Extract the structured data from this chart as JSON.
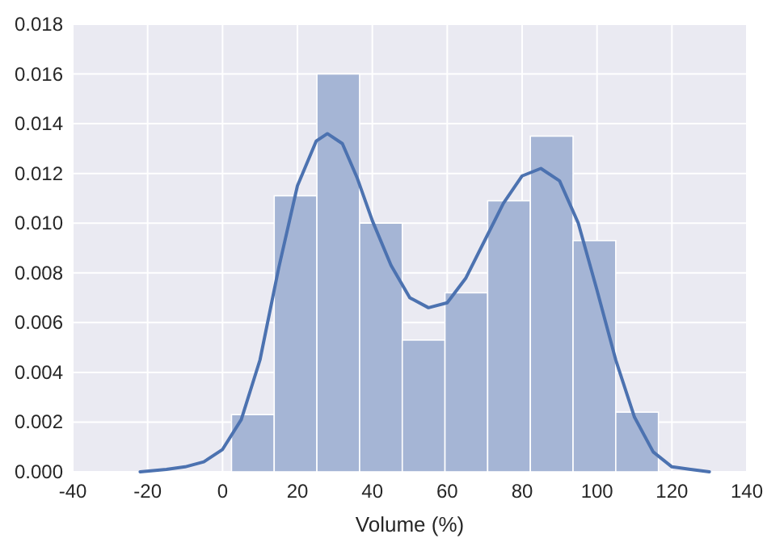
{
  "chart_data": {
    "type": "histogram",
    "xlabel": "Volume (%)",
    "bins": [
      2.4,
      13.8,
      25.2,
      36.6,
      48.0,
      59.4,
      70.8,
      82.2,
      93.6,
      105.0,
      116.4
    ],
    "values": [
      0.0023,
      0.0111,
      0.016,
      0.01,
      0.0053,
      0.0072,
      0.0109,
      0.0135,
      0.0093,
      0.0024
    ],
    "color": "#a5b5d5",
    "series": [
      {
        "type": "line",
        "color": "#4c72b0",
        "x": [
          -22,
          -15,
          -10,
          -5,
          0,
          5,
          10,
          15,
          20,
          25,
          28,
          32,
          36,
          40,
          45,
          50,
          55,
          60,
          65,
          70,
          75,
          80,
          85,
          90,
          95,
          100,
          105,
          110,
          115,
          120,
          125,
          130
        ],
        "values": [
          0.0,
          0.0001,
          0.0002,
          0.0004,
          0.0009,
          0.0021,
          0.0045,
          0.0082,
          0.0115,
          0.0133,
          0.0136,
          0.0132,
          0.0118,
          0.0101,
          0.0083,
          0.007,
          0.0066,
          0.0068,
          0.0078,
          0.0093,
          0.0108,
          0.0119,
          0.0122,
          0.0117,
          0.01,
          0.0073,
          0.0045,
          0.0022,
          0.0008,
          0.0002,
          0.0001,
          0.0
        ]
      }
    ],
    "xlim": [
      -40,
      140
    ],
    "xticks": [
      -40,
      -20,
      0,
      20,
      40,
      60,
      80,
      100,
      120,
      140
    ],
    "ylim": [
      0,
      0.018
    ],
    "yticks": [
      {
        "value": 0,
        "label": "0.000"
      },
      {
        "value": 0.002,
        "label": "0.002"
      },
      {
        "value": 0.004,
        "label": "0.004"
      },
      {
        "value": 0.006,
        "label": "0.006"
      },
      {
        "value": 0.008,
        "label": "0.008"
      },
      {
        "value": 0.01,
        "label": "0.010"
      },
      {
        "value": 0.012,
        "label": "0.012"
      },
      {
        "value": 0.014,
        "label": "0.014"
      },
      {
        "value": 0.016,
        "label": "0.016"
      },
      {
        "value": 0.018,
        "label": "0.018"
      }
    ],
    "grid": true
  }
}
